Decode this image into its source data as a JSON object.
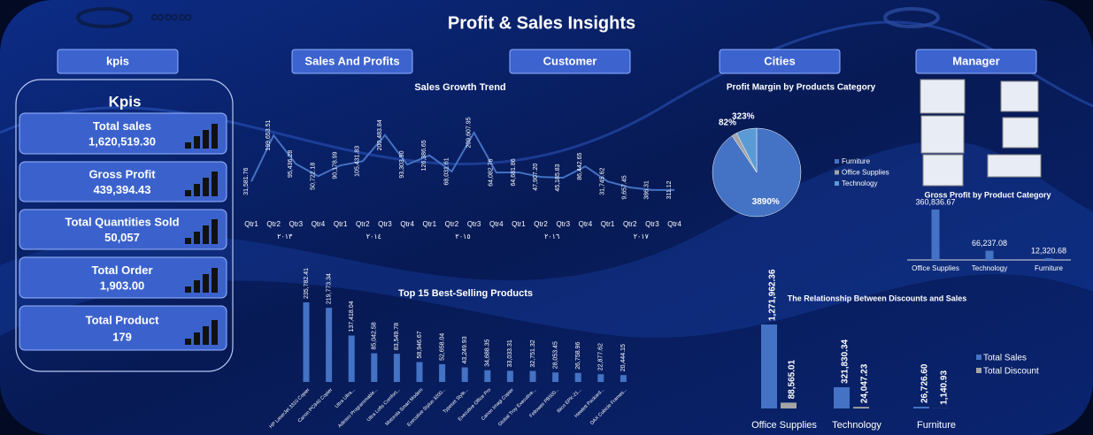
{
  "header": {
    "title": "Profit & Sales Insights"
  },
  "nav": [
    "kpis",
    "Sales And Profits",
    "Customer",
    "Cities",
    "Manager"
  ],
  "kpis": {
    "title": "Kpis",
    "items": [
      {
        "label": "Total sales",
        "value": "1,620,519.30"
      },
      {
        "label": "Gross Profit",
        "value": "439,394.43"
      },
      {
        "label": "Total Quantities Sold",
        "value": "50,057"
      },
      {
        "label": "Total Order",
        "value": "1,903.00"
      },
      {
        "label": "Total Product",
        "value": "179"
      }
    ]
  },
  "chart_data": [
    {
      "type": "line",
      "title": "Sales Growth Trend",
      "categories": [
        "Qtr1",
        "Qtr2",
        "Qtr3",
        "Qtr4",
        "Qtr1",
        "Qtr2",
        "Qtr3",
        "Qtr4",
        "Qtr1",
        "Qtr2",
        "Qtr3",
        "Qtr4",
        "Qtr1",
        "Qtr2",
        "Qtr3",
        "Qtr4",
        "Qtr1",
        "Qtr2",
        "Qtr3",
        "Qtr4"
      ],
      "groups": [
        "٢٠١٣",
        "٢٠١٤",
        "٢٠١٥",
        "٢٠١٦",
        "٢٠١٧"
      ],
      "values": [
        31581.76,
        199653.51,
        95436.28,
        50722.18,
        90178.99,
        105431.83,
        200483.84,
        93303.9,
        126386.65,
        68031.61,
        209607.95,
        64082.76,
        64681.86,
        47907.2,
        45185.83,
        86442.65,
        31745.62,
        9657.45,
        386.31,
        311.12
      ],
      "value_labels": [
        "31,581.76",
        "199,653.51",
        "95,436.28",
        "50,722.18",
        "90,178.99",
        "105,431.83",
        "200,483.84",
        "93,303.90",
        "126,386.65",
        "68,031.61",
        "209,607.95",
        "64,082.76",
        "64,681.86",
        "47,907.20",
        "45,185.83",
        "86,442.65",
        "31,745.62",
        "9,657.45",
        "386.31",
        "311.12"
      ],
      "color": "#4472c4"
    },
    {
      "type": "pie",
      "title": "Profit Margin by Products Category",
      "categories": [
        "Furniture",
        "Office Supplies",
        "Technology"
      ],
      "values": [
        3890,
        82,
        323
      ],
      "value_labels": [
        "3890%",
        "82%",
        "323%"
      ],
      "colors": [
        "#4472c4",
        "#a5a5a5",
        "#5b9bd5"
      ]
    },
    {
      "type": "bar",
      "title": "Gross Profit by Product Category",
      "categories": [
        "Office Supplies",
        "Technology",
        "Furniture"
      ],
      "values": [
        360836.67,
        66237.08,
        12320.68
      ],
      "value_labels": [
        "360,836.67",
        "66,237.08",
        "12,320.68"
      ],
      "color": "#4472c4"
    },
    {
      "type": "bar",
      "title": "Top 15 Best-Selling Products",
      "categories": [
        "HP LaserJet 3310 Copier",
        "Canon PC940 Copier",
        "Ultra Ultra...",
        "Adesso Programmable...",
        "Ultra Lofts Comfort...",
        "Motorola Smart Modem",
        "Executive Stylus 3200...",
        "Typeset Style...",
        "Executive Office Pro",
        "Canon Imagi Copier",
        "Global Troy Executive...",
        "Fellowes PB500...",
        "Ibico EPK-21...",
        "Hewlett Packard...",
        "DAX Cubicle Frames..."
      ],
      "values": [
        235782.41,
        219773.34,
        137418.04,
        85042.58,
        83549.78,
        58946.67,
        52658.04,
        43249.93,
        34688.35,
        33033.31,
        32751.32,
        28053.45,
        26758.96,
        22877.62,
        20444.15
      ],
      "value_labels": [
        "235,782.41",
        "219,773.34",
        "137,418.04",
        "85,042.58",
        "83,549.78",
        "58,946.67",
        "52,658.04",
        "43,249.93",
        "34,688.35",
        "33,033.31",
        "32,751.32",
        "28,053.45",
        "26,758.96",
        "22,877.62",
        "20,444.15"
      ],
      "color": "#4472c4"
    },
    {
      "type": "grouped",
      "title": "The Relationship Between Discounts and Sales",
      "categories": [
        "Office Supplies",
        "Technology",
        "Furniture"
      ],
      "series": [
        {
          "name": "Total Sales",
          "color": "#4472c4",
          "values": [
            1271962.36,
            321830.34,
            26726.6
          ],
          "value_labels": [
            "1,271,962.36",
            "321,830.34",
            "26,726.60"
          ]
        },
        {
          "name": "Total Discount",
          "color": "#a5a5a5",
          "values": [
            88565.01,
            24047.23,
            1140.93
          ],
          "value_labels": [
            "88,565.01",
            "24,047.23",
            "1,140.93"
          ]
        }
      ]
    }
  ]
}
